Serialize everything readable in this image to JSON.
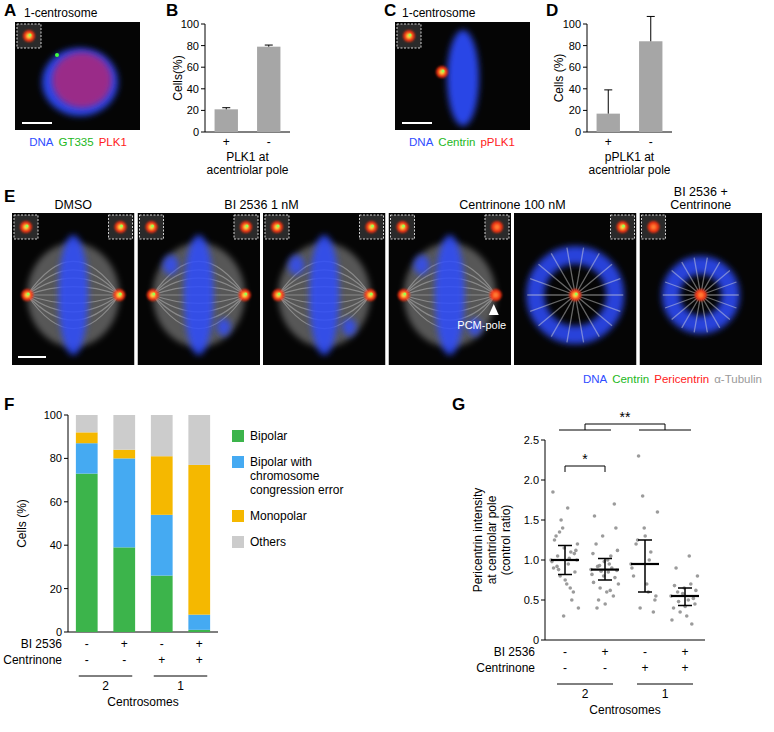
{
  "figure": {
    "panel_labels": [
      "A",
      "B",
      "C",
      "D",
      "E",
      "F",
      "G"
    ],
    "panel_a": {
      "title": "1-centrosome",
      "channels": [
        {
          "text": "DNA",
          "color": "#2f4dff"
        },
        {
          "text": "GT335",
          "color": "#22b822"
        },
        {
          "text": "PLK1",
          "color": "#ff2020"
        }
      ]
    },
    "panel_c": {
      "title": "1-centrosome",
      "channels": [
        {
          "text": "DNA",
          "color": "#2f4dff"
        },
        {
          "text": "Centrin",
          "color": "#22b822"
        },
        {
          "text": "pPLK1",
          "color": "#ff2020"
        }
      ]
    },
    "panel_e": {
      "headers": [
        {
          "lines": [
            "DMSO"
          ],
          "span": 1
        },
        {
          "lines": [
            "BI 2536 1 nM"
          ],
          "span": 2
        },
        {
          "lines": [
            "Centrinone 100 nM"
          ],
          "span": 2
        },
        {
          "lines": [
            "BI 2536 +",
            "Centrinone"
          ],
          "span": 1
        }
      ],
      "annotation": "PCM-pole",
      "channels": [
        {
          "text": "DNA",
          "color": "#2f4dff"
        },
        {
          "text": "Centrin",
          "color": "#22b822"
        },
        {
          "text": "Pericentrin",
          "color": "#ff2020"
        },
        {
          "text": "α-Tubulin",
          "color": "#9a9a9a"
        }
      ]
    }
  },
  "chart_data": [
    {
      "type": "bar",
      "categories": [
        "+",
        "-"
      ],
      "values": [
        21,
        79
      ],
      "error": [
        1.5,
        1.5
      ],
      "color": "#a6a6a6",
      "y_label": "Cells(%)",
      "x_label": [
        "PLK1 at",
        "acentriolar pole"
      ],
      "ylim": [
        0,
        100
      ],
      "yticks": [
        0,
        20,
        40,
        60,
        80,
        100
      ]
    },
    {
      "type": "bar",
      "categories": [
        "+",
        "-"
      ],
      "values": [
        17,
        84
      ],
      "error": [
        22,
        23
      ],
      "color": "#a6a6a6",
      "y_label": "Cells (%)",
      "x_label": [
        "pPLK1 at",
        "acentriolar pole"
      ],
      "ylim": [
        0,
        100
      ],
      "yticks": [
        0,
        20,
        40,
        60,
        80,
        100
      ]
    },
    {
      "type": "bar",
      "stacked": true,
      "legend": "right",
      "categories": [
        null,
        null,
        null,
        null
      ],
      "series": [
        {
          "name": "Bipolar",
          "color": "#3cb44b",
          "values": [
            73,
            39,
            26,
            1
          ]
        },
        {
          "name": "Bipolar with chromosome congression error",
          "color": "#45aaf2",
          "values": [
            14,
            41,
            28,
            7
          ]
        },
        {
          "name": "Monopolar",
          "color": "#f5b800",
          "values": [
            5,
            4,
            27,
            69
          ]
        },
        {
          "name": "Others",
          "color": "#cccccc",
          "values": [
            8,
            16,
            19,
            23
          ]
        }
      ],
      "y_label": "Cells (%)",
      "ylim": [
        0,
        100
      ],
      "yticks": [
        0,
        20,
        40,
        60,
        80,
        100
      ],
      "conditions": [
        {
          "name": "BI 2536",
          "values": [
            "-",
            "+",
            "-",
            "+"
          ]
        },
        {
          "name": "Centrinone",
          "values": [
            "-",
            "-",
            "+",
            "+"
          ]
        }
      ],
      "groups": {
        "label": "Centrosomes",
        "items": [
          {
            "label": "2",
            "count": 2
          },
          {
            "label": "1",
            "count": 2
          }
        ]
      }
    },
    {
      "type": "scatter",
      "marker": "circle",
      "color": "#8a8a8a",
      "categories": [
        null,
        null,
        null,
        null
      ],
      "points": [
        [
          1.0,
          0.95,
          1.05,
          0.85,
          1.15,
          0.9,
          1.1,
          0.8,
          1.2,
          0.7,
          1.3,
          0.6,
          1.4,
          0.98,
          1.02,
          0.88,
          1.12,
          0.75,
          1.25,
          0.5,
          1.5,
          0.4,
          1.65,
          0.92,
          1.08,
          0.3,
          1.85,
          0.65,
          1.35,
          1.0
        ],
        [
          0.88,
          0.85,
          0.92,
          0.78,
          0.98,
          0.72,
          1.05,
          0.65,
          1.12,
          0.6,
          1.2,
          0.55,
          1.3,
          0.82,
          0.95,
          0.5,
          1.4,
          0.45,
          1.55,
          0.9,
          0.86,
          0.7,
          1.0,
          0.4,
          1.7,
          0.8,
          1.08,
          0.62,
          0.93,
          0.87
        ],
        [
          0.95,
          0.6,
          1.25,
          0.5,
          1.4,
          0.8,
          1.1,
          0.4,
          1.6,
          0.7,
          1.2,
          0.35,
          1.8,
          0.9,
          1.0,
          2.3,
          0.55,
          1.3
        ],
        [
          0.55,
          0.5,
          0.6,
          0.45,
          0.65,
          0.4,
          0.7,
          0.35,
          0.8,
          0.3,
          0.9,
          0.52,
          0.58,
          0.25,
          1.05,
          0.48,
          0.62,
          0.42,
          0.68,
          0.2
        ]
      ],
      "median": [
        1.0,
        0.88,
        0.95,
        0.55
      ],
      "q1": [
        0.82,
        0.75,
        0.6,
        0.43
      ],
      "q3": [
        1.18,
        1.02,
        1.25,
        0.65
      ],
      "y_label": [
        "Pericentrin intensity",
        "at centriolar pole",
        "(control ratio)"
      ],
      "ylim": [
        0,
        2.5
      ],
      "yticks": [
        0,
        0.5,
        {
          "value": 1,
          "label": "1.0"
        },
        1.5,
        {
          "value": 2,
          "label": "2.0"
        },
        2.5
      ],
      "significance": [
        {
          "text": "*",
          "groups": [
            0,
            1
          ]
        },
        {
          "text": "**",
          "groups": [
            0,
            1,
            2,
            3
          ]
        }
      ],
      "conditions": [
        {
          "name": "BI 2536",
          "values": [
            "-",
            "+",
            "-",
            "+"
          ]
        },
        {
          "name": "Centrinone",
          "values": [
            "-",
            "-",
            "+",
            "+"
          ]
        }
      ],
      "groups": {
        "label": "Centrosomes",
        "items": [
          {
            "label": "2",
            "count": 2
          },
          {
            "label": "1",
            "count": 2
          }
        ]
      }
    }
  ]
}
